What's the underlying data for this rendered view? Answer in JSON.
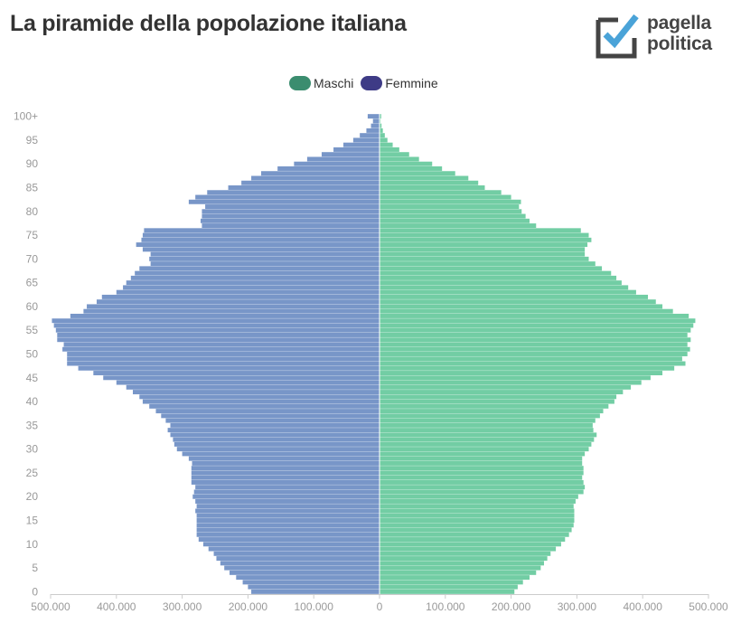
{
  "header": {
    "title": "La piramide della popolazione italiana"
  },
  "logo": {
    "line1": "pagella",
    "line2": "politica"
  },
  "chart_data": {
    "type": "bar",
    "orientation": "horizontal",
    "title": "La piramide della popolazione italiana",
    "legend_position": "top-center",
    "series": [
      {
        "name": "Maschi",
        "color": "#3b8d6f",
        "bar_color": "#72cda4"
      },
      {
        "name": "Femmine",
        "color": "#3e3b86",
        "bar_color": "#7896c8"
      }
    ],
    "x_ticks": [
      "500.000",
      "400.000",
      "300.000",
      "200.000",
      "100.000",
      "0",
      "100.000",
      "200.000",
      "300.000",
      "400.000",
      "500.000"
    ],
    "y_ticks": [
      "0",
      "5",
      "10",
      "15",
      "20",
      "25",
      "30",
      "35",
      "40",
      "45",
      "50",
      "55",
      "60",
      "65",
      "70",
      "75",
      "80",
      "85",
      "90",
      "95",
      "100+"
    ],
    "xlim": [
      -500000,
      500000
    ],
    "ages": [
      0,
      1,
      2,
      3,
      4,
      5,
      6,
      7,
      8,
      9,
      10,
      11,
      12,
      13,
      14,
      15,
      16,
      17,
      18,
      19,
      20,
      21,
      22,
      23,
      24,
      25,
      26,
      27,
      28,
      29,
      30,
      31,
      32,
      33,
      34,
      35,
      36,
      37,
      38,
      39,
      40,
      41,
      42,
      43,
      44,
      45,
      46,
      47,
      48,
      49,
      50,
      51,
      52,
      53,
      54,
      55,
      56,
      57,
      58,
      59,
      60,
      61,
      62,
      63,
      64,
      65,
      66,
      67,
      68,
      69,
      70,
      71,
      72,
      73,
      74,
      75,
      76,
      77,
      78,
      79,
      80,
      81,
      82,
      83,
      84,
      85,
      86,
      87,
      88,
      89,
      90,
      91,
      92,
      93,
      94,
      95,
      96,
      97,
      98,
      99,
      100
    ],
    "maschi": [
      205000,
      210000,
      218000,
      228000,
      238000,
      245000,
      250000,
      255000,
      260000,
      268000,
      276000,
      282000,
      288000,
      292000,
      295000,
      296000,
      296000,
      296000,
      295000,
      298000,
      302000,
      310000,
      312000,
      310000,
      308000,
      310000,
      310000,
      308000,
      308000,
      312000,
      318000,
      322000,
      326000,
      330000,
      325000,
      324000,
      328000,
      335000,
      340000,
      348000,
      357000,
      360000,
      370000,
      382000,
      398000,
      412000,
      430000,
      448000,
      465000,
      460000,
      468000,
      472000,
      468000,
      473000,
      468000,
      473000,
      477000,
      480000,
      470000,
      446000,
      430000,
      420000,
      408000,
      390000,
      378000,
      368000,
      360000,
      352000,
      338000,
      328000,
      318000,
      312000,
      312000,
      316000,
      322000,
      318000,
      306000,
      238000,
      228000,
      222000,
      216000,
      212000,
      215000,
      200000,
      185000,
      160000,
      150000,
      135000,
      115000,
      95000,
      80000,
      60000,
      45000,
      30000,
      20000,
      12000,
      8000,
      5000,
      3000,
      1500,
      2500
    ],
    "femmine": [
      195000,
      200000,
      208000,
      218000,
      228000,
      236000,
      242000,
      248000,
      252000,
      260000,
      268000,
      275000,
      278000,
      278000,
      278000,
      278000,
      278000,
      280000,
      278000,
      280000,
      284000,
      282000,
      280000,
      286000,
      286000,
      286000,
      286000,
      285000,
      290000,
      300000,
      308000,
      312000,
      314000,
      318000,
      322000,
      318000,
      325000,
      332000,
      340000,
      350000,
      360000,
      365000,
      375000,
      385000,
      400000,
      420000,
      435000,
      458000,
      475000,
      475000,
      475000,
      482000,
      480000,
      490000,
      490000,
      492000,
      495000,
      498000,
      470000,
      450000,
      445000,
      430000,
      422000,
      400000,
      390000,
      385000,
      378000,
      372000,
      365000,
      348000,
      350000,
      348000,
      360000,
      370000,
      362000,
      360000,
      358000,
      270000,
      272000,
      270000,
      270000,
      265000,
      290000,
      280000,
      262000,
      230000,
      210000,
      195000,
      180000,
      155000,
      130000,
      110000,
      88000,
      70000,
      55000,
      40000,
      30000,
      20000,
      13000,
      10000,
      18000
    ]
  }
}
